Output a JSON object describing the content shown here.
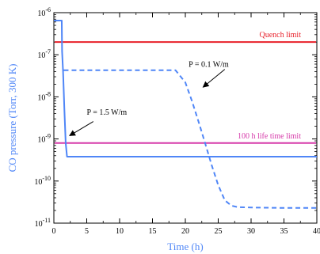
{
  "chart_data": {
    "type": "line",
    "xlabel": "Time (h)",
    "ylabel": "CO pressure (Torr, 300 K)",
    "xlim": [
      0,
      40
    ],
    "ylim": [
      1e-11,
      1e-06
    ],
    "yscale": "log",
    "x_ticks": [
      {
        "value": 0,
        "label": "0"
      },
      {
        "value": 5,
        "label": "5"
      },
      {
        "value": 10,
        "label": "10"
      },
      {
        "value": 15,
        "label": "15"
      },
      {
        "value": 20,
        "label": "20"
      },
      {
        "value": 25,
        "label": "25"
      },
      {
        "value": 30,
        "label": "30"
      },
      {
        "value": 35,
        "label": "35"
      },
      {
        "value": 40,
        "label": "40"
      }
    ],
    "y_ticks": [
      {
        "value": 1e-06,
        "base": "10",
        "exp": "-6"
      },
      {
        "value": 1e-07,
        "base": "10",
        "exp": "-7"
      },
      {
        "value": 1e-08,
        "base": "10",
        "exp": "-8"
      },
      {
        "value": 1e-09,
        "base": "10",
        "exp": "-9"
      },
      {
        "value": 1e-10,
        "base": "10",
        "exp": "-10"
      },
      {
        "value": 1e-11,
        "base": "10",
        "exp": "-11"
      }
    ],
    "grid": false,
    "legend": "none",
    "colors": {
      "axis_title": "#4f86f7",
      "p_1_5": "#4f86f7",
      "p_0_1": "#4f86f7",
      "quench": "#e8202a",
      "life": "#d63aaa"
    },
    "series": [
      {
        "id": "p_1_5",
        "name": "P = 1.5 W/m",
        "style": "solid",
        "x": [
          0,
          1.2,
          1.25,
          1.4,
          1.6,
          1.8,
          2.0,
          40
        ],
        "y": [
          6.5e-07,
          6.5e-07,
          1.2e-07,
          4e-08,
          5e-09,
          8e-10,
          3.8e-10,
          3.8e-10
        ]
      },
      {
        "id": "p_0_1",
        "name": "P = 0.1 W/m",
        "style": "dashed",
        "x": [
          1.5,
          18.5,
          20,
          21,
          22,
          23,
          24,
          25,
          26,
          27,
          28,
          30,
          35,
          40
        ],
        "y": [
          4.3e-08,
          4.3e-08,
          2.2e-08,
          8e-09,
          2.6e-09,
          8e-10,
          2.4e-10,
          8e-11,
          3.5e-11,
          2.6e-11,
          2.4e-11,
          2.35e-11,
          2.3e-11,
          2.3e-11
        ]
      }
    ],
    "limits": [
      {
        "id": "quench",
        "label": "Quench limit",
        "value": 2e-07
      },
      {
        "id": "life",
        "label": "100 h life time limit",
        "value": 8e-10
      }
    ],
    "annotations": [
      {
        "id": "p_0_1",
        "text": "P = 0.1 W/m",
        "x": 20.5,
        "y": 5.2e-08,
        "arrow_from": [
          26,
          4.5e-08
        ],
        "arrow_to": [
          22.7,
          1.7e-08
        ]
      },
      {
        "id": "p_1_5",
        "text": "P = 1.5 W/m",
        "x": 5.0,
        "y": 3.8e-09,
        "arrow_from": [
          6.0,
          2.6e-09
        ],
        "arrow_to": [
          2.4,
          1.2e-09
        ]
      }
    ]
  }
}
